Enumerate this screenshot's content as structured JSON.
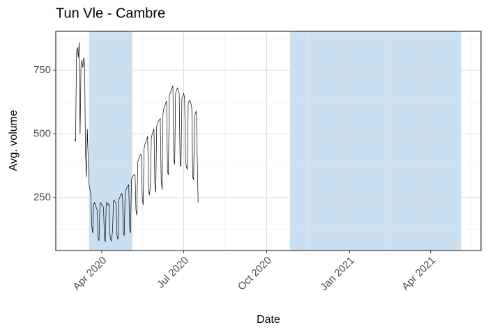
{
  "chart_data": {
    "type": "line",
    "title": "Tun Vle - Cambre",
    "x_label": "Date",
    "y_label": "Avg. volume",
    "x": [
      "2020-03-02",
      "2020-03-03",
      "2020-03-04",
      "2020-03-05",
      "2020-03-06",
      "2020-03-07",
      "2020-03-08",
      "2020-03-09",
      "2020-03-10",
      "2020-03-11",
      "2020-03-12",
      "2020-03-13",
      "2020-03-14",
      "2020-03-15",
      "2020-03-16",
      "2020-03-17",
      "2020-03-18",
      "2020-03-19",
      "2020-03-20",
      "2020-03-21",
      "2020-03-22",
      "2020-03-23",
      "2020-03-24",
      "2020-03-25",
      "2020-03-26",
      "2020-03-27",
      "2020-03-28",
      "2020-03-29",
      "2020-03-30",
      "2020-03-31",
      "2020-04-01",
      "2020-04-02",
      "2020-04-03",
      "2020-04-04",
      "2020-04-05",
      "2020-04-06",
      "2020-04-07",
      "2020-04-08",
      "2020-04-09",
      "2020-04-10",
      "2020-04-11",
      "2020-04-12",
      "2020-04-13",
      "2020-04-14",
      "2020-04-15",
      "2020-04-16",
      "2020-04-17",
      "2020-04-18",
      "2020-04-19",
      "2020-04-20",
      "2020-04-21",
      "2020-04-22",
      "2020-04-23",
      "2020-04-24",
      "2020-04-25",
      "2020-04-26",
      "2020-04-27",
      "2020-04-28",
      "2020-04-29",
      "2020-04-30",
      "2020-05-01",
      "2020-05-02",
      "2020-05-03",
      "2020-05-04",
      "2020-05-05",
      "2020-05-06",
      "2020-05-07",
      "2020-05-08",
      "2020-05-09",
      "2020-05-10",
      "2020-05-11",
      "2020-05-12",
      "2020-05-13",
      "2020-05-14",
      "2020-05-15",
      "2020-05-16",
      "2020-05-17",
      "2020-05-18",
      "2020-05-19",
      "2020-05-20",
      "2020-05-21",
      "2020-05-22",
      "2020-05-23",
      "2020-05-24",
      "2020-05-25",
      "2020-05-26",
      "2020-05-27",
      "2020-05-28",
      "2020-05-29",
      "2020-05-30",
      "2020-05-31",
      "2020-06-01",
      "2020-06-02",
      "2020-06-03",
      "2020-06-04",
      "2020-06-05",
      "2020-06-06",
      "2020-06-07",
      "2020-06-08",
      "2020-06-09",
      "2020-06-10",
      "2020-06-11",
      "2020-06-12",
      "2020-06-13",
      "2020-06-14",
      "2020-06-15",
      "2020-06-16",
      "2020-06-17",
      "2020-06-18",
      "2020-06-19",
      "2020-06-20",
      "2020-06-21",
      "2020-06-22",
      "2020-06-23",
      "2020-06-24",
      "2020-06-25",
      "2020-06-26",
      "2020-06-27",
      "2020-06-28",
      "2020-06-29",
      "2020-06-30",
      "2020-07-01",
      "2020-07-02",
      "2020-07-03",
      "2020-07-04",
      "2020-07-05",
      "2020-07-06",
      "2020-07-07",
      "2020-07-08",
      "2020-07-09",
      "2020-07-10",
      "2020-07-11",
      "2020-07-12",
      "2020-07-13",
      "2020-07-14",
      "2020-07-15",
      "2020-07-16",
      "2020-07-17"
    ],
    "series": [
      {
        "color": "#000000",
        "values": [
          480,
          470,
          820,
          840,
          800,
          860,
          500,
          770,
          790,
          760,
          800,
          780,
          420,
          330,
          520,
          400,
          300,
          280,
          260,
          140,
          110,
          220,
          230,
          220,
          210,
          200,
          90,
          80,
          220,
          230,
          220,
          220,
          210,
          90,
          75,
          230,
          230,
          220,
          225,
          110,
          85,
          80,
          120,
          235,
          240,
          230,
          230,
          100,
          85,
          240,
          250,
          260,
          265,
          260,
          110,
          100,
          270,
          280,
          290,
          295,
          300,
          130,
          110,
          320,
          330,
          335,
          340,
          340,
          200,
          180,
          390,
          400,
          410,
          420,
          415,
          250,
          220,
          440,
          460,
          470,
          480,
          490,
          280,
          260,
          300,
          480,
          500,
          510,
          520,
          300,
          270,
          530,
          540,
          550,
          555,
          560,
          320,
          280,
          580,
          600,
          610,
          620,
          630,
          350,
          340,
          650,
          660,
          670,
          680,
          690,
          400,
          380,
          660,
          670,
          680,
          670,
          660,
          390,
          370,
          640,
          650,
          660,
          640,
          400,
          370,
          360,
          620,
          630,
          630,
          620,
          600,
          330,
          320,
          570,
          580,
          590,
          410,
          230
        ]
      }
    ],
    "shaded_ranges": [
      [
        "2020-03-18",
        "2020-05-05"
      ],
      [
        "2020-10-27",
        "2021-05-05"
      ]
    ],
    "shade_color": "#cadff0",
    "xlim": [
      "2020-02-10",
      "2021-05-27"
    ],
    "xticks": [
      {
        "value": "2020-04-01",
        "label": "Apr 2020"
      },
      {
        "value": "2020-07-01",
        "label": "Jul 2020"
      },
      {
        "value": "2020-10-01",
        "label": "Oct 2020"
      },
      {
        "value": "2021-01-01",
        "label": "Jan 2021"
      },
      {
        "value": "2021-04-01",
        "label": "Apr 2021"
      }
    ],
    "x_minor_ticks": [
      "2020-02-15",
      "2020-05-16",
      "2020-08-16",
      "2020-11-16",
      "2021-02-15",
      "2021-05-16"
    ],
    "ylim": [
      42,
      903
    ],
    "yticks": [
      250,
      500,
      750
    ],
    "y_minor_ticks": [
      125,
      375,
      625,
      875
    ],
    "grid": true
  }
}
